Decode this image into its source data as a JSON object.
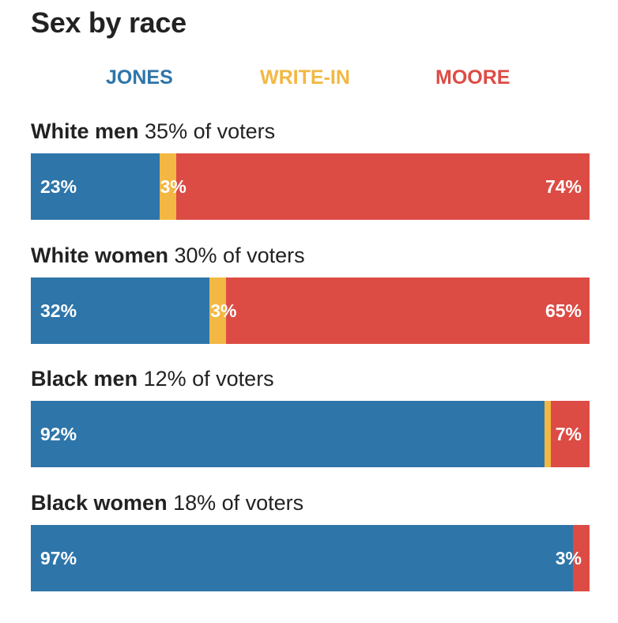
{
  "chart_data": {
    "type": "bar",
    "orientation": "horizontal",
    "stacked": true,
    "title": "Sex by race",
    "legend": [
      {
        "name": "JONES",
        "color": "#2e75a9"
      },
      {
        "name": "WRITE-IN",
        "color": "#f2b843"
      },
      {
        "name": "MOORE",
        "color": "#dc4c45"
      }
    ],
    "groups": [
      {
        "name": "White men",
        "share": "35% of voters",
        "values": [
          23,
          3,
          74
        ],
        "labels": [
          "23%",
          "3%",
          "74%"
        ]
      },
      {
        "name": "White women",
        "share": "30% of voters",
        "values": [
          32,
          3,
          65
        ],
        "labels": [
          "32%",
          "3%",
          "65%"
        ]
      },
      {
        "name": "Black men",
        "share": "12% of voters",
        "values": [
          92,
          1,
          7
        ],
        "labels": [
          "92%",
          "",
          "7%"
        ]
      },
      {
        "name": "Black women",
        "share": "18% of voters",
        "values": [
          97,
          0,
          3
        ],
        "labels": [
          "97%",
          "",
          "3%"
        ]
      }
    ]
  }
}
